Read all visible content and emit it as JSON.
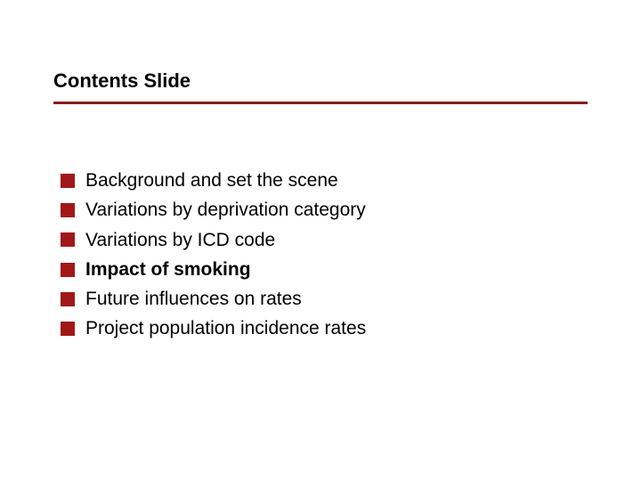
{
  "title": "Contents Slide",
  "divider_color": "#8b1a1a",
  "bullet_color": "#a01818",
  "bullet_size": 16,
  "text_color": "#000000",
  "title_fontsize": 22,
  "item_fontsize": 21,
  "background_color": "#ffffff",
  "items": [
    {
      "text": "Background and set the scene",
      "bold": false
    },
    {
      "text": "Variations by deprivation category",
      "bold": false
    },
    {
      "text": "Variations by ICD code",
      "bold": false
    },
    {
      "text": "Impact of smoking",
      "bold": true
    },
    {
      "text": "Future influences on rates",
      "bold": false
    },
    {
      "text": "Project population incidence rates",
      "bold": false
    }
  ]
}
